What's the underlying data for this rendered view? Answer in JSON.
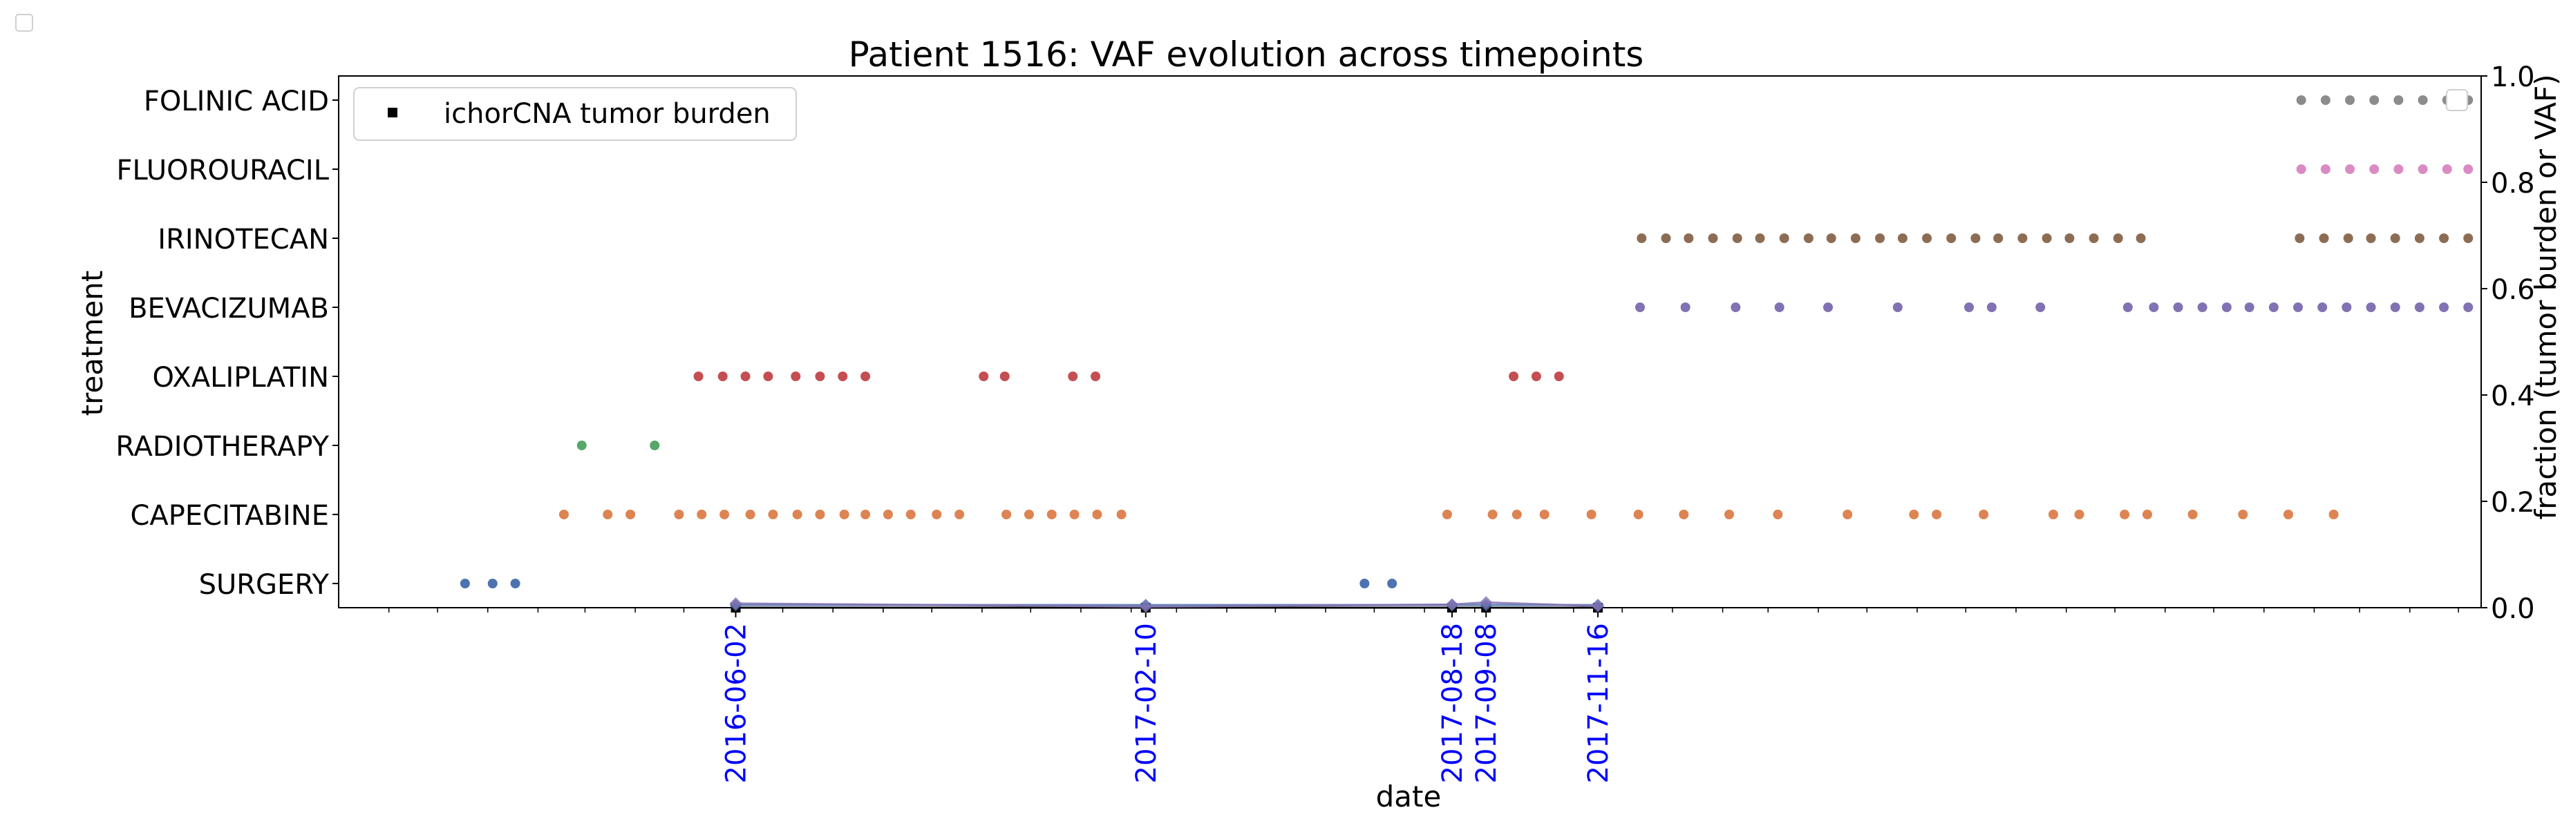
{
  "chart_data": {
    "type": "scatter",
    "title": "Patient 1516: VAF evolution across timepoints",
    "xlabel": "date",
    "ylabel_left": "treatment",
    "ylabel_right": "fraction (tumor burden or VAF)",
    "right_ylim": [
      0.0,
      1.0
    ],
    "right_ticks": [
      "0.0",
      "0.2",
      "0.4",
      "0.6",
      "0.8",
      "1.0"
    ],
    "xlim": [
      "2015-10-01",
      "2019-05-15"
    ],
    "x_tick_labels": [
      "2016-06-02",
      "2017-02-10",
      "2017-08-18",
      "2017-09-08",
      "2017-11-16"
    ],
    "x_tick_label_color": "#0000ff",
    "legend": {
      "entries": [
        "ichorCNA tumor burden"
      ],
      "placement": "upper left"
    },
    "categories": [
      "SURGERY",
      "CAPECITABINE",
      "RADIOTHERAPY",
      "OXALIPLATIN",
      "BEVACIZUMAB",
      "IRINOTECAN",
      "FLUOROURACIL",
      "FOLINIC ACID"
    ],
    "treatments": [
      {
        "name": "SURGERY",
        "color": "#4c72b0",
        "dates": [
          "2015-12-18",
          "2016-01-04",
          "2016-01-18",
          "2017-06-25",
          "2017-07-12"
        ]
      },
      {
        "name": "CAPECITABINE",
        "color": "#dd8452",
        "dates": [
          "2016-02-17",
          "2016-03-15",
          "2016-03-29",
          "2016-04-28",
          "2016-05-12",
          "2016-05-26",
          "2016-06-11",
          "2016-06-25",
          "2016-07-10",
          "2016-07-24",
          "2016-08-08",
          "2016-08-21",
          "2016-09-04",
          "2016-09-18",
          "2016-10-04",
          "2016-10-18",
          "2016-11-16",
          "2016-11-30",
          "2016-12-14",
          "2016-12-28",
          "2017-01-11",
          "2017-01-26",
          "2017-08-15",
          "2017-09-12",
          "2017-09-27",
          "2017-10-14",
          "2017-11-12",
          "2017-12-11",
          "2018-01-08",
          "2018-02-05",
          "2018-03-07",
          "2018-04-19",
          "2018-05-30",
          "2018-06-13",
          "2018-07-12",
          "2018-08-24",
          "2018-09-09",
          "2018-10-07",
          "2018-10-21",
          "2018-11-18",
          "2018-12-19",
          "2019-01-16",
          "2019-02-13"
        ]
      },
      {
        "name": "RADIOTHERAPY",
        "color": "#55a868",
        "dates": [
          "2016-02-28",
          "2016-04-13"
        ]
      },
      {
        "name": "OXALIPLATIN",
        "color": "#c44e52",
        "dates": [
          "2016-05-10",
          "2016-05-25",
          "2016-06-08",
          "2016-06-22",
          "2016-07-09",
          "2016-07-24",
          "2016-08-07",
          "2016-08-21",
          "2016-11-02",
          "2016-11-15",
          "2016-12-27",
          "2017-01-10",
          "2017-09-25",
          "2017-10-09",
          "2017-10-23"
        ]
      },
      {
        "name": "BEVACIZUMAB",
        "color": "#8172b3",
        "dates": [
          "2017-12-12",
          "2018-01-09",
          "2018-02-09",
          "2018-03-08",
          "2018-04-07",
          "2018-05-20",
          "2018-07-03",
          "2018-07-17",
          "2018-08-16",
          "2018-10-09",
          "2018-10-25",
          "2018-11-09",
          "2018-11-24",
          "2018-12-09",
          "2018-12-23",
          "2019-01-07",
          "2019-01-22",
          "2019-02-06",
          "2019-02-21",
          "2019-03-08",
          "2019-03-23",
          "2019-04-07",
          "2019-04-22",
          "2019-05-07"
        ]
      },
      {
        "name": "IRINOTECAN",
        "color": "#8c6d54",
        "dates": [
          "2017-12-13",
          "2017-12-28",
          "2018-01-11",
          "2018-01-26",
          "2018-02-10",
          "2018-02-24",
          "2018-03-11",
          "2018-03-26",
          "2018-04-09",
          "2018-04-24",
          "2018-05-09",
          "2018-05-23",
          "2018-06-07",
          "2018-06-22",
          "2018-07-07",
          "2018-07-21",
          "2018-08-05",
          "2018-08-20",
          "2018-09-03",
          "2018-09-18",
          "2018-10-03",
          "2018-10-17",
          "2019-01-23",
          "2019-02-07",
          "2019-02-22",
          "2019-03-08",
          "2019-03-23",
          "2019-04-07",
          "2019-04-22",
          "2019-05-07"
        ]
      },
      {
        "name": "FLUOROURACIL",
        "color": "#da8bc3",
        "dates": [
          "2019-01-24",
          "2019-02-08",
          "2019-02-23",
          "2019-03-10",
          "2019-03-25",
          "2019-04-09",
          "2019-04-24",
          "2019-05-07"
        ]
      },
      {
        "name": "FOLINIC ACID",
        "color": "#8c8c8c",
        "dates": [
          "2019-01-24",
          "2019-02-08",
          "2019-02-23",
          "2019-03-10",
          "2019-03-25",
          "2019-04-09",
          "2019-04-24",
          "2019-05-07"
        ]
      }
    ],
    "series": [
      {
        "name": "ichorCNA tumor burden",
        "color": "#000000",
        "points": [
          {
            "x": "2016-06-02",
            "y": 0.0
          },
          {
            "x": "2017-02-10",
            "y": 0.0
          },
          {
            "x": "2017-08-18",
            "y": 0.0
          },
          {
            "x": "2017-09-08",
            "y": 0.0
          },
          {
            "x": "2017-11-16",
            "y": 0.0
          }
        ]
      },
      {
        "color": "#4c72b0",
        "points": [
          {
            "x": "2016-06-02",
            "y": 0.005
          },
          {
            "x": "2017-02-10",
            "y": 0.005
          },
          {
            "x": "2017-08-18",
            "y": 0.005
          },
          {
            "x": "2017-09-08",
            "y": 0.005
          },
          {
            "x": "2017-11-16",
            "y": 0.005
          }
        ]
      },
      {
        "color": "#8172b3",
        "points": [
          {
            "x": "2016-06-02",
            "y": 0.008
          },
          {
            "x": "2017-02-10",
            "y": 0.002
          },
          {
            "x": "2017-08-18",
            "y": 0.006
          },
          {
            "x": "2017-09-08",
            "y": 0.01
          },
          {
            "x": "2017-11-16",
            "y": 0.003
          }
        ]
      }
    ]
  }
}
